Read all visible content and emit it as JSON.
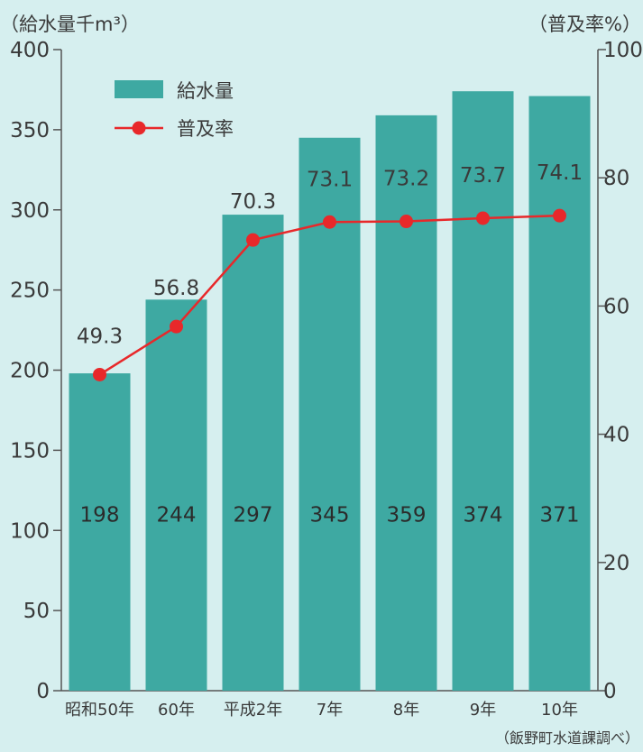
{
  "chart_data": {
    "type": "bar",
    "left_axis_title": "（給水量千m³）",
    "right_axis_title": "（普及率%）",
    "categories": [
      "昭和50年",
      "60年",
      "平成2年",
      "7年",
      "8年",
      "9年",
      "10年"
    ],
    "series": [
      {
        "name": "給水量",
        "type": "bar",
        "axis": "left",
        "values": [
          198,
          244,
          297,
          345,
          359,
          374,
          371
        ]
      },
      {
        "name": "普及率",
        "type": "line",
        "axis": "right",
        "values": [
          49.3,
          56.8,
          70.3,
          73.1,
          73.2,
          73.7,
          74.1
        ]
      }
    ],
    "y_left": {
      "min": 0,
      "max": 400,
      "ticks": [
        0,
        50,
        100,
        150,
        200,
        250,
        300,
        350,
        400
      ]
    },
    "y_right": {
      "min": 0,
      "max": 100,
      "ticks": [
        0,
        20,
        40,
        60,
        80,
        100
      ]
    },
    "legend_position": "top-left",
    "source": "（飯野町水道課調べ）",
    "colors": {
      "background": "#d6efef",
      "bar": "#3ea9a2",
      "line": "#e8282a",
      "bar_label": "#2b2b2b",
      "text": "#3a3a3a"
    }
  }
}
